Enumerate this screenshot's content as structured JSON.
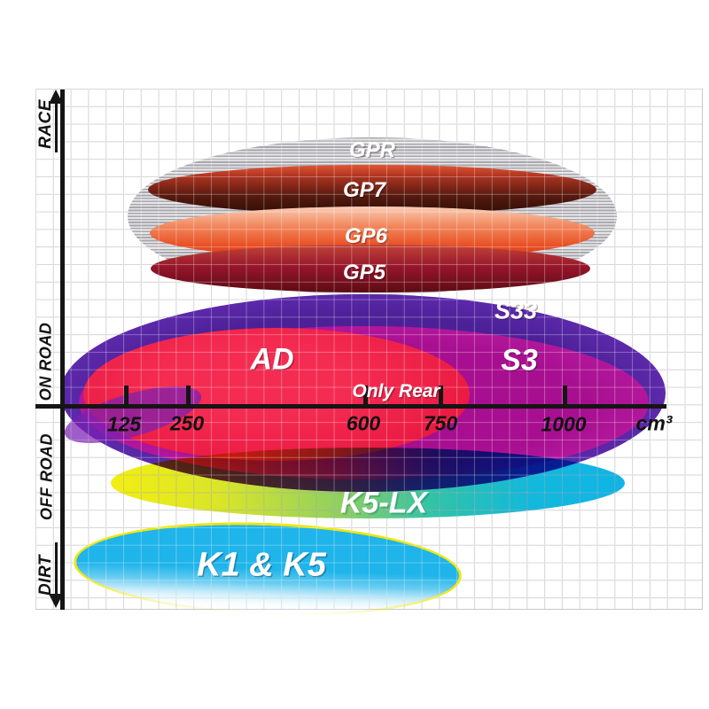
{
  "y_axis": {
    "zones": [
      "RACE",
      "ON ROAD",
      "OFF ROAD",
      "DIRT"
    ]
  },
  "x_axis": {
    "ticks": [
      "125",
      "250",
      "600",
      "750",
      "1000"
    ],
    "unit": "cm³"
  },
  "compounds": {
    "gpr": "GPR",
    "gp7": "GP7",
    "gp6": "GP6",
    "gp5": "GP5",
    "s33": "S33",
    "s3": "S3",
    "ad": "AD",
    "ad_note": "Only Rear",
    "k5lx": "K5-LX",
    "k1k5": "K1 & K5"
  },
  "colors": {
    "grid": "#c7c7cd",
    "axis": "#151515",
    "gpr_hatch": "#a7a7ac",
    "gp7": "#7a241a",
    "gp6": "#e84d22",
    "gp5": "#94152a",
    "s33": "#5b2aa5",
    "s3": "#b2189e",
    "ad": "#ee1843",
    "k5lx_left": "#f4ee12",
    "k5lx_right": "#10b4e6",
    "k1k5": "#1fb4ea",
    "k1k5_outline": "#efe60a"
  },
  "chart_data": {
    "type": "area",
    "subtype": "ellipse-range-diagram",
    "title": "",
    "xlabel": "cm³",
    "ylabel": "usage zones (RACE / ON ROAD / OFF ROAD / DIRT)",
    "x_ticks": [
      125,
      250,
      600,
      750,
      1000
    ],
    "xlim": [
      0,
      1280
    ],
    "grid": true,
    "legend_position": "labels-inside-ellipses",
    "y_zones_top_to_bottom": [
      "RACE",
      "ON ROAD",
      "OFF ROAD",
      "DIRT"
    ],
    "series": [
      {
        "name": "GPR",
        "zone": "RACE",
        "cc_min": 125,
        "cc_max": 1100,
        "color": "silver hatched"
      },
      {
        "name": "GP7",
        "zone": "RACE",
        "cc_min": 170,
        "cc_max": 1060,
        "color": "#7a241a"
      },
      {
        "name": "GP6",
        "zone": "RACE",
        "cc_min": 175,
        "cc_max": 1060,
        "color": "#e84d22"
      },
      {
        "name": "GP5",
        "zone": "RACE",
        "cc_min": 175,
        "cc_max": 1050,
        "color": "#94152a"
      },
      {
        "name": "S33",
        "zone": "ON ROAD",
        "cc_min": 0,
        "cc_max": 1200,
        "color": "#5b2aa5"
      },
      {
        "name": "S3",
        "zone": "ON ROAD",
        "cc_min": 30,
        "cc_max": 1170,
        "color": "#b2189e"
      },
      {
        "name": "AD",
        "zone": "ON ROAD",
        "cc_min": 40,
        "cc_max": 810,
        "color": "#ee1843",
        "note": "Only Rear"
      },
      {
        "name": "K5-LX",
        "zone": "ON ROAD/OFF ROAD",
        "cc_min": 95,
        "cc_max": 1120,
        "color": "yellow-to-cyan gradient"
      },
      {
        "name": "K1 & K5",
        "zone": "DIRT",
        "cc_min": 20,
        "cc_max": 800,
        "color": "#1fb4ea",
        "outline": "#efe60a"
      }
    ]
  }
}
